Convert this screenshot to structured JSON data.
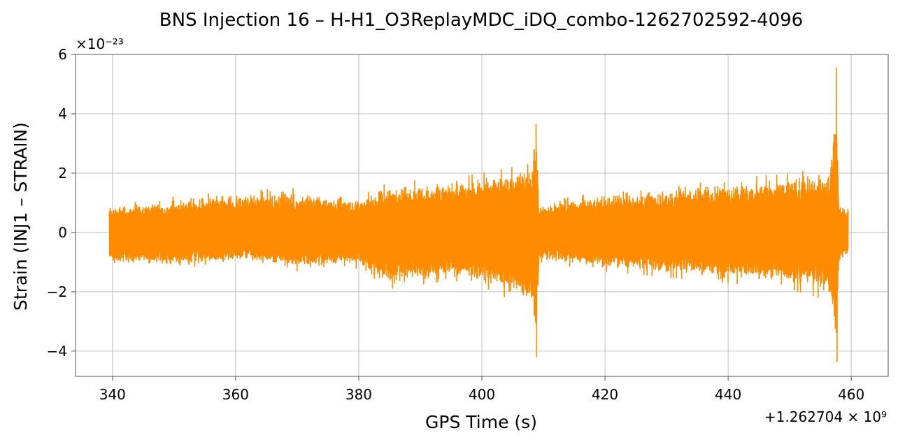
{
  "chart_data": {
    "type": "line",
    "title": "BNS Injection 16 – H-H1_O3ReplayMDC_iDQ_combo-1262702592-4096",
    "xlabel": "GPS Time (s)",
    "ylabel": "Strain (INJ1 – STRAIN)",
    "x_offset_label": "+1.262704 × 10⁹",
    "y_scale_label": "×10⁻²³",
    "xlim": [
      334,
      466
    ],
    "ylim": [
      -4.85,
      6.0
    ],
    "xticks": [
      340,
      360,
      380,
      400,
      420,
      440,
      460
    ],
    "yticks": [
      -4,
      -2,
      0,
      2,
      4,
      6
    ],
    "xtick_labels": [
      "340",
      "360",
      "380",
      "400",
      "420",
      "440",
      "460"
    ],
    "ytick_labels": [
      "−4",
      "−2",
      "0",
      "2",
      "4",
      "6"
    ],
    "grid": true,
    "series": [
      {
        "color": "#ff8c00",
        "x_range": [
          339.5,
          459.5
        ],
        "envelope": [
          {
            "x": 339.5,
            "upper": 0.9,
            "lower": -1.1
          },
          {
            "x": 350,
            "upper": 1.2,
            "lower": -1.2
          },
          {
            "x": 362,
            "upper": 1.4,
            "lower": -1.0
          },
          {
            "x": 369,
            "upper": 1.5,
            "lower": -1.3
          },
          {
            "x": 380,
            "upper": 1.2,
            "lower": -1.2
          },
          {
            "x": 385,
            "upper": 1.7,
            "lower": -1.9
          },
          {
            "x": 395,
            "upper": 1.8,
            "lower": -1.6
          },
          {
            "x": 400,
            "upper": 2.0,
            "lower": -1.8
          },
          {
            "x": 405,
            "upper": 2.2,
            "lower": -2.3
          },
          {
            "x": 408,
            "upper": 2.5,
            "lower": -2.6
          },
          {
            "x": 408.8,
            "upper": 3.65,
            "lower": -4.2
          },
          {
            "x": 409.3,
            "upper": 1.0,
            "lower": -1.0
          },
          {
            "x": 420,
            "upper": 1.4,
            "lower": -1.3
          },
          {
            "x": 430,
            "upper": 1.5,
            "lower": -1.5
          },
          {
            "x": 440,
            "upper": 1.8,
            "lower": -1.7
          },
          {
            "x": 450,
            "upper": 2.0,
            "lower": -1.9
          },
          {
            "x": 456.5,
            "upper": 2.2,
            "lower": -2.3
          },
          {
            "x": 457.6,
            "upper": 5.55,
            "lower": -4.35
          },
          {
            "x": 458.0,
            "upper": 1.0,
            "lower": -1.0
          },
          {
            "x": 459.5,
            "upper": 0.9,
            "lower": -0.9
          }
        ]
      }
    ]
  }
}
